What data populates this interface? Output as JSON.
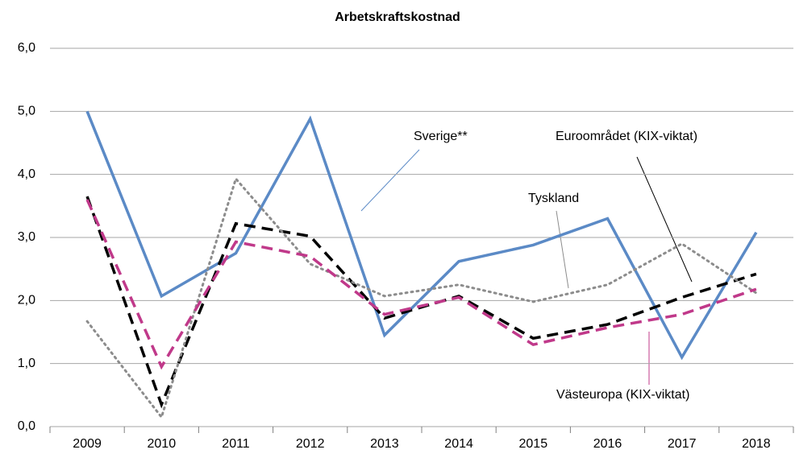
{
  "chart_data": {
    "type": "line",
    "title": "Arbetskraftskostnad",
    "categories": [
      "2009",
      "2010",
      "2011",
      "2012",
      "2013",
      "2014",
      "2015",
      "2016",
      "2017",
      "2018"
    ],
    "series": [
      {
        "name": "Sverige**",
        "color": "#5b8ac6",
        "style": "solid",
        "values": [
          5.0,
          2.07,
          2.75,
          4.88,
          1.45,
          2.62,
          2.88,
          3.3,
          1.1,
          3.08
        ]
      },
      {
        "name": "Euroområdet  (KIX-viktat)",
        "color": "#000000",
        "style": "dashed",
        "values": [
          3.65,
          0.35,
          3.22,
          3.02,
          1.72,
          2.07,
          1.4,
          1.62,
          2.05,
          2.42
        ]
      },
      {
        "name": "Tyskland",
        "color": "#8c8c8c",
        "style": "dotted",
        "values": [
          1.67,
          0.15,
          3.93,
          2.58,
          2.07,
          2.25,
          1.98,
          2.25,
          2.9,
          2.12
        ]
      },
      {
        "name": "Västeuropa  (KIX-viktat)",
        "color": "#c0398a",
        "style": "dashed",
        "values": [
          3.6,
          0.95,
          2.93,
          2.7,
          1.78,
          2.05,
          1.3,
          1.57,
          1.78,
          2.18
        ]
      }
    ],
    "ylim": [
      0,
      6
    ],
    "yticks": [
      {
        "value": 0,
        "label": "0,0"
      },
      {
        "value": 1,
        "label": "1,0"
      },
      {
        "value": 2,
        "label": "2,0"
      },
      {
        "value": 3,
        "label": "3,0"
      },
      {
        "value": 4,
        "label": "4,0"
      },
      {
        "value": 5,
        "label": "5,0"
      },
      {
        "value": 6,
        "label": "6,0"
      }
    ],
    "grid": true
  }
}
